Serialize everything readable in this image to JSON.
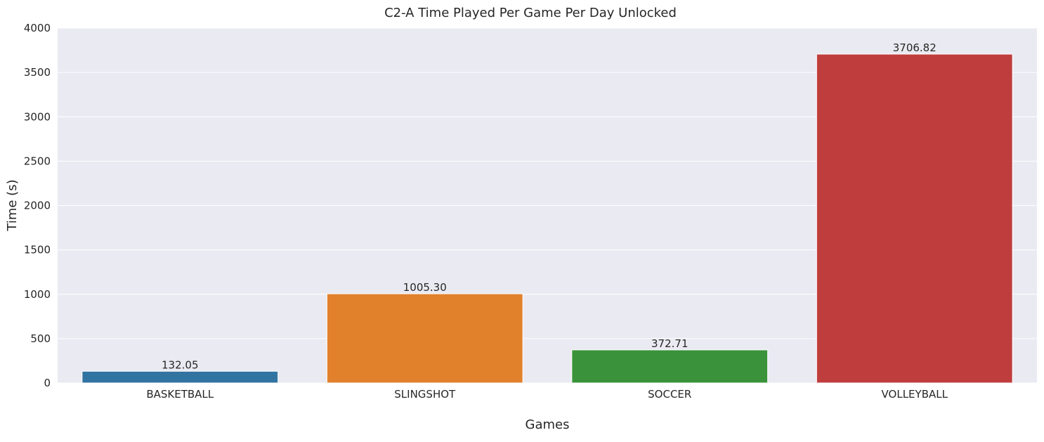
{
  "chart_data": {
    "type": "bar",
    "title": "C2-A Time Played Per Game Per Day Unlocked",
    "xlabel": "Games",
    "ylabel": "Time (s)",
    "categories": [
      "BASKETBALL",
      "SLINGSHOT",
      "SOCCER",
      "VOLLEYBALL"
    ],
    "values": [
      132.05,
      1005.3,
      372.71,
      3706.82
    ],
    "value_labels": [
      "132.05",
      "1005.30",
      "372.71",
      "3706.82"
    ],
    "colors": [
      "#3274a1",
      "#e1812c",
      "#3a923a",
      "#c03d3e"
    ],
    "ylim": [
      0,
      4000
    ],
    "yticks": [
      0,
      500,
      1000,
      1500,
      2000,
      2500,
      3000,
      3500,
      4000
    ],
    "grid": true,
    "background": "#eaeaf2"
  }
}
